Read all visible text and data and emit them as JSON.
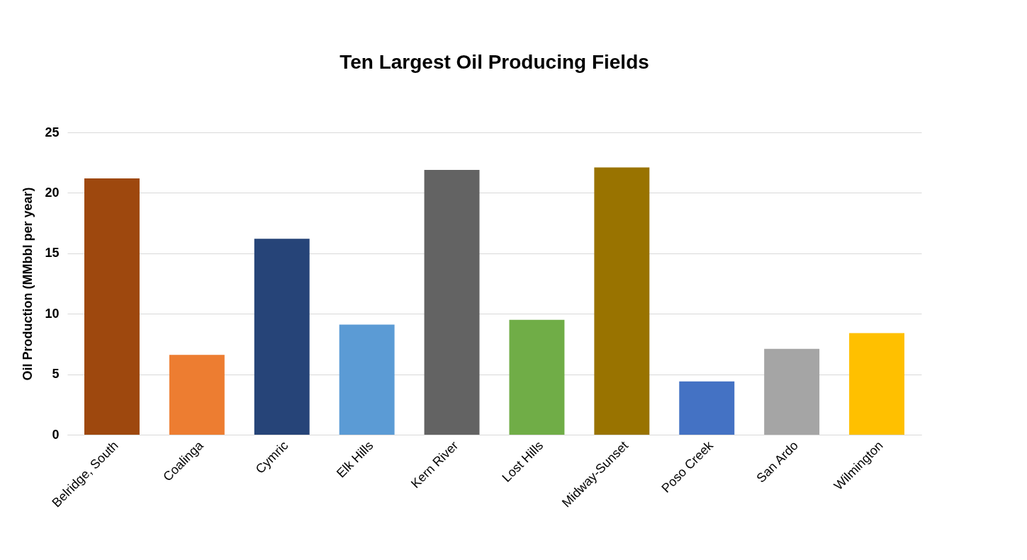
{
  "chart_data": {
    "type": "bar",
    "title": "Ten Largest Oil Producing Fields",
    "ylabel": "Oil Production (MMbbl per year)",
    "categories": [
      "Belridge, South",
      "Coalinga",
      "Cymric",
      "Elk Hills",
      "Kern River",
      "Lost Hills",
      "Midway-Sunset",
      "Poso Creek",
      "San Ardo",
      "Wilmington"
    ],
    "values": [
      21.2,
      6.6,
      16.2,
      9.1,
      21.9,
      9.5,
      22.1,
      4.4,
      7.1,
      8.4
    ],
    "colors": [
      "#9e480e",
      "#ed7d31",
      "#264478",
      "#5b9bd5",
      "#636363",
      "#70ad47",
      "#997300",
      "#4472c4",
      "#a5a5a5",
      "#ffc000"
    ],
    "ylim": [
      0,
      25
    ],
    "yticks": [
      0,
      5,
      10,
      15,
      20,
      25
    ],
    "grid": "y"
  }
}
